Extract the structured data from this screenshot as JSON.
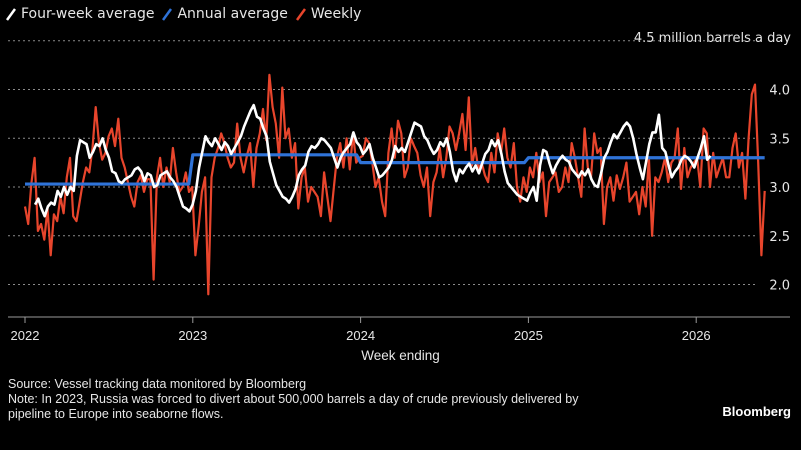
{
  "chart_data": {
    "type": "line",
    "title": "",
    "unit_label": "4.5 million barrels a day",
    "xlabel": "Week ending",
    "ylabel": "",
    "ylim": [
      1.8,
      4.5
    ],
    "yticks": [
      2.0,
      2.5,
      3.0,
      3.5,
      4.0
    ],
    "ytick_labels": [
      "2.0",
      "2.5",
      "3.0",
      "3.5",
      "4.0"
    ],
    "gridlines_at": [
      2.0,
      2.5,
      3.0,
      3.5,
      4.0,
      4.5
    ],
    "grid": true,
    "x_range_years": [
      2022.0,
      2026.35
    ],
    "xticks": [
      2022,
      2023,
      2024,
      2025,
      2026
    ],
    "xtick_labels": [
      "2022",
      "2023",
      "2024",
      "2025",
      "2026"
    ],
    "legend_placement": "top-left",
    "series": [
      {
        "name": "Four-week average",
        "color": "#ffffff",
        "start_year": 2022.06,
        "step_weeks": 1,
        "values": [
          2.82,
          2.88,
          2.78,
          2.7,
          2.8,
          2.84,
          2.82,
          2.96,
          2.9,
          3.0,
          2.92,
          3.0,
          2.96,
          3.32,
          3.48,
          3.46,
          3.44,
          3.3,
          3.36,
          3.44,
          3.42,
          3.5,
          3.38,
          3.3,
          3.16,
          3.14,
          3.06,
          3.04,
          3.08,
          3.1,
          3.12,
          3.18,
          3.2,
          3.16,
          3.06,
          3.14,
          3.12,
          3.0,
          3.02,
          3.12,
          3.14,
          3.16,
          3.1,
          3.06,
          3.0,
          2.9,
          2.8,
          2.78,
          2.75,
          2.82,
          2.96,
          3.2,
          3.36,
          3.52,
          3.46,
          3.42,
          3.5,
          3.44,
          3.38,
          3.46,
          3.42,
          3.34,
          3.4,
          3.46,
          3.52,
          3.62,
          3.7,
          3.78,
          3.84,
          3.72,
          3.7,
          3.6,
          3.52,
          3.26,
          3.14,
          3.02,
          2.96,
          2.9,
          2.88,
          2.84,
          2.9,
          2.98,
          3.12,
          3.18,
          3.22,
          3.36,
          3.42,
          3.4,
          3.44,
          3.5,
          3.48,
          3.44,
          3.4,
          3.3,
          3.2,
          3.3,
          3.36,
          3.4,
          3.44,
          3.56,
          3.46,
          3.42,
          3.34,
          3.38,
          3.44,
          3.3,
          3.2,
          3.1,
          3.12,
          3.16,
          3.2,
          3.28,
          3.42,
          3.36,
          3.4,
          3.36,
          3.46,
          3.56,
          3.66,
          3.64,
          3.62,
          3.52,
          3.48,
          3.4,
          3.34,
          3.38,
          3.46,
          3.42,
          3.5,
          3.36,
          3.16,
          3.06,
          3.18,
          3.14,
          3.2,
          3.24,
          3.16,
          3.22,
          3.14,
          3.24,
          3.34,
          3.38,
          3.48,
          3.42,
          3.48,
          3.34,
          3.16,
          3.04,
          3.0,
          2.96,
          2.92,
          2.9,
          2.88,
          2.86,
          2.94,
          3.0,
          2.86,
          3.22,
          3.38,
          3.36,
          3.24,
          3.14,
          3.22,
          3.28,
          3.32,
          3.28,
          3.26,
          3.18,
          3.14,
          3.1,
          3.16,
          3.12,
          3.18,
          3.08,
          3.02,
          3.0,
          3.14,
          3.3,
          3.36,
          3.46,
          3.54,
          3.5,
          3.56,
          3.62,
          3.66,
          3.62,
          3.5,
          3.34,
          3.2,
          3.08,
          3.26,
          3.44,
          3.56,
          3.56,
          3.74,
          3.4,
          3.36,
          3.22,
          3.1,
          3.16,
          3.2,
          3.28,
          3.32,
          3.3,
          3.26,
          3.2,
          3.3,
          3.4,
          3.52,
          3.28,
          3.32
        ]
      },
      {
        "name": "Annual average",
        "color": "#2f73d8",
        "segments": [
          {
            "year": 2022,
            "value": 3.03
          },
          {
            "year": 2023,
            "value": 3.33
          },
          {
            "year": 2024,
            "value": 3.25
          },
          {
            "year": 2025,
            "value": 3.3
          },
          {
            "year": 2026,
            "value": 3.3
          }
        ]
      },
      {
        "name": "Weekly",
        "color": "#e8452c",
        "start_year": 2022.0,
        "step_weeks": 1,
        "values": [
          2.8,
          2.62,
          3.04,
          3.3,
          2.55,
          2.62,
          2.46,
          2.78,
          2.3,
          2.72,
          2.65,
          2.9,
          2.73,
          3.1,
          3.3,
          2.7,
          2.65,
          2.85,
          3.05,
          3.2,
          3.15,
          3.4,
          3.82,
          3.45,
          3.28,
          3.35,
          3.52,
          3.6,
          3.42,
          3.7,
          3.3,
          3.2,
          3.05,
          2.9,
          2.8,
          3.05,
          3.12,
          2.95,
          3.08,
          3.08,
          2.05,
          3.1,
          3.3,
          3.0,
          3.2,
          3.05,
          3.4,
          3.15,
          2.95,
          3.0,
          3.15,
          2.95,
          3.0,
          2.3,
          2.6,
          2.95,
          3.1,
          1.9,
          3.1,
          3.3,
          3.4,
          3.55,
          3.45,
          3.3,
          3.2,
          3.25,
          3.65,
          3.3,
          3.15,
          3.32,
          3.45,
          3.0,
          3.4,
          3.55,
          3.8,
          3.48,
          4.15,
          3.82,
          3.65,
          3.3,
          4.02,
          3.5,
          3.6,
          3.3,
          3.45,
          2.78,
          3.1,
          3.2,
          2.85,
          3.0,
          2.95,
          2.9,
          2.7,
          3.15,
          2.9,
          2.65,
          2.98,
          3.3,
          3.45,
          3.2,
          3.5,
          3.18,
          3.55,
          3.25,
          3.3,
          3.32,
          3.5,
          3.45,
          3.25,
          3.0,
          3.1,
          2.85,
          2.7,
          3.35,
          3.6,
          3.3,
          3.68,
          3.55,
          3.1,
          3.2,
          3.5,
          3.42,
          3.35,
          3.12,
          3.0,
          3.2,
          2.7,
          3.05,
          3.15,
          3.4,
          3.1,
          3.3,
          3.62,
          3.55,
          3.38,
          3.55,
          3.75,
          3.38,
          3.92,
          3.22,
          3.4,
          3.18,
          3.25,
          3.12,
          3.05,
          3.35,
          3.15,
          3.55,
          3.35,
          3.6,
          3.3,
          3.2,
          3.45,
          3.0,
          2.85,
          3.1,
          2.95,
          3.2,
          3.1,
          3.35,
          3.05,
          3.15,
          2.7,
          3.05,
          3.1,
          3.15,
          2.95,
          3.0,
          3.2,
          3.05,
          3.45,
          3.3,
          3.1,
          2.9,
          3.6,
          3.2,
          3.1,
          3.55,
          3.35,
          3.4,
          2.62,
          3.0,
          3.1,
          2.86,
          3.12,
          2.98,
          3.1,
          3.25,
          2.85,
          2.9,
          2.95,
          2.72,
          3.0,
          2.8,
          3.3,
          2.5,
          3.1,
          3.05,
          3.15,
          3.3,
          3.05,
          3.25,
          3.3,
          3.6,
          2.98,
          3.4,
          3.1,
          3.2,
          3.25,
          3.3,
          3.0,
          3.6,
          3.55,
          3.0,
          3.35,
          3.1,
          3.2,
          3.3,
          3.1,
          3.1,
          3.4,
          3.55,
          3.2,
          3.35,
          2.88,
          3.5,
          3.95,
          4.05,
          3.25,
          2.3,
          2.96
        ]
      }
    ]
  },
  "legend": {
    "items": [
      {
        "label": "Four-week average",
        "color": "#ffffff"
      },
      {
        "label": "Annual average",
        "color": "#2f73d8"
      },
      {
        "label": "Weekly",
        "color": "#e8452c"
      }
    ]
  },
  "footer": {
    "source": "Source: Vessel tracking data monitored by Bloomberg",
    "note_line1": "Note: In 2023, Russia was forced to divert about 500,000 barrels a day of crude previously delivered by",
    "note_line2": "pipeline to Europe into seaborne flows.",
    "brand": "Bloomberg"
  }
}
